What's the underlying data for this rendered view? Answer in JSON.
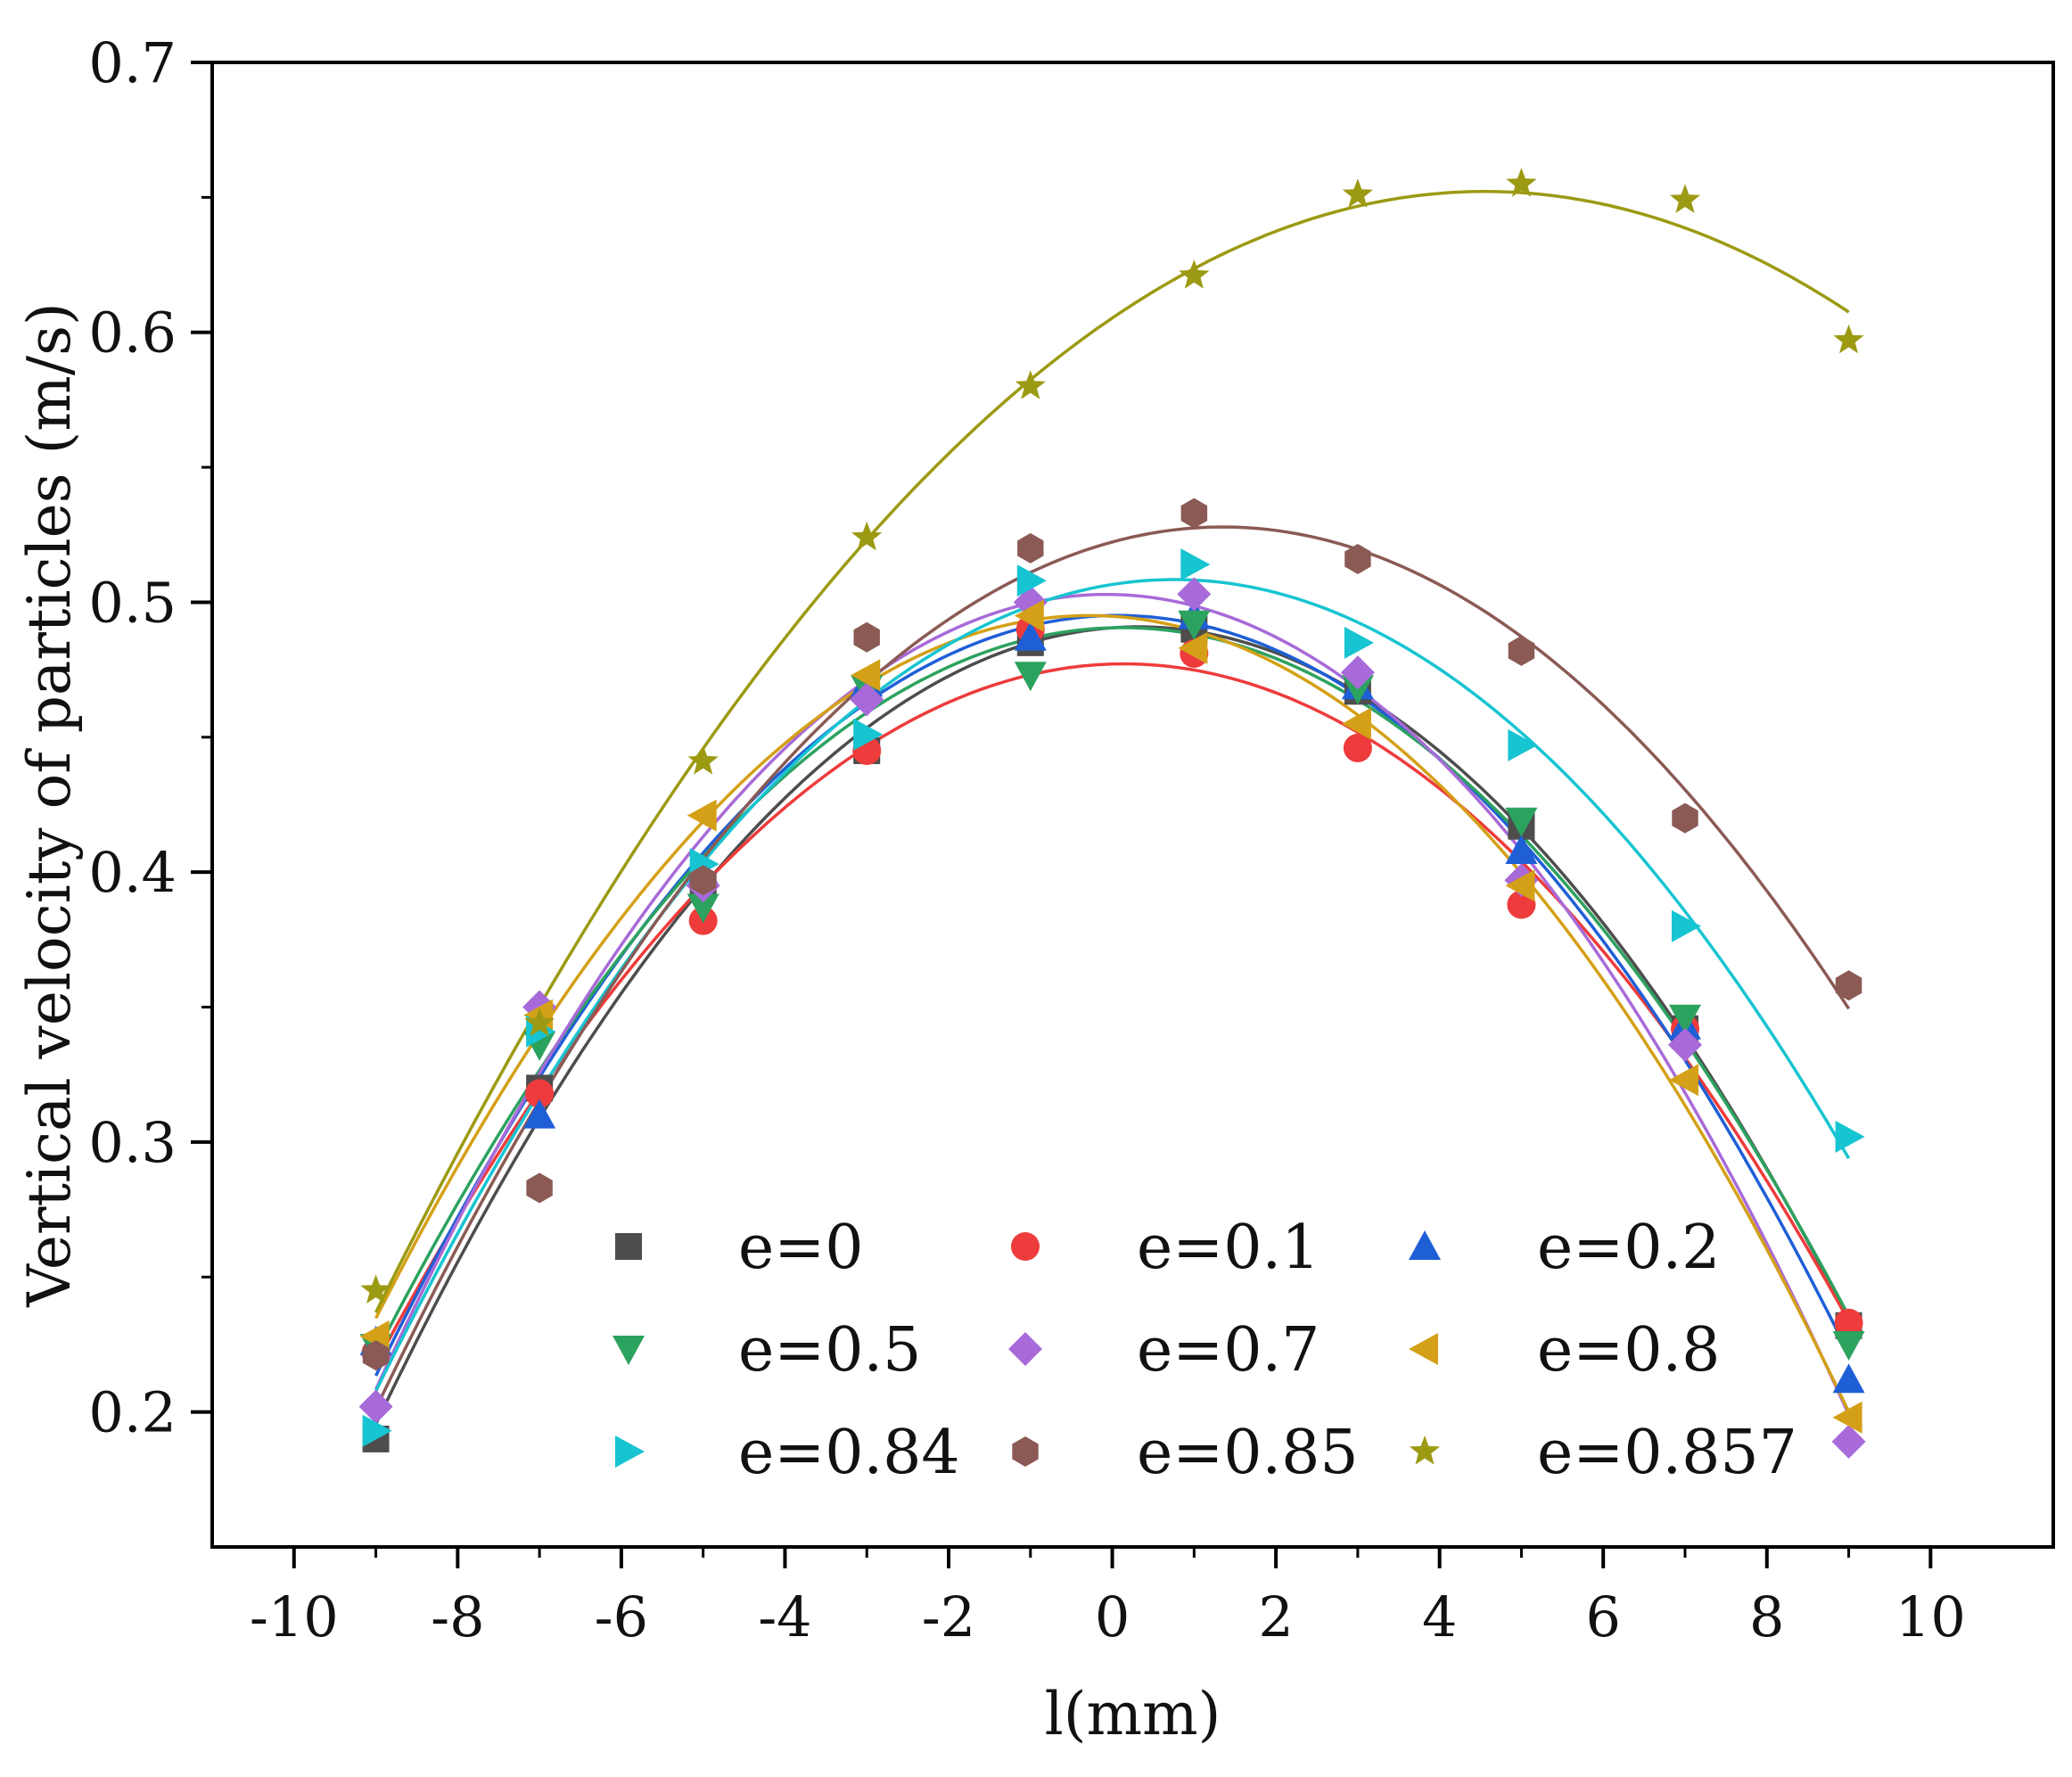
{
  "chart_data": {
    "type": "scatter",
    "title": "",
    "xlabel": "l(mm)",
    "ylabel": "Vertical velocity of particles (m/s)",
    "xlim": [
      -11,
      11.5
    ],
    "ylim": [
      0.15,
      0.7
    ],
    "xticks": [
      -10,
      -8,
      -6,
      -4,
      -2,
      0,
      2,
      4,
      6,
      8,
      10
    ],
    "xtick_labels": [
      "-10",
      "-8",
      "-6",
      "-4",
      "-2",
      "0",
      "2",
      "4",
      "6",
      "8",
      "10"
    ],
    "yticks": [
      0.2,
      0.3,
      0.4,
      0.5,
      0.6,
      0.7
    ],
    "ytick_labels": [
      "0.2",
      "0.3",
      "0.4",
      "0.5",
      "0.6",
      "0.7"
    ],
    "fit": "quadratic",
    "legend_position": "bottom-center, 3 columns",
    "x": [
      -9,
      -7,
      -5,
      -3,
      -1,
      1,
      3,
      5,
      7,
      9
    ],
    "series": [
      {
        "name": "e=0",
        "marker": "square",
        "color": "#4d4d4d",
        "values": [
          0.19,
          0.32,
          0.395,
          0.445,
          0.485,
          0.49,
          0.467,
          0.417,
          0.342,
          0.232
        ]
      },
      {
        "name": "e=0.1",
        "marker": "circle",
        "color": "#ee3b3b",
        "values": [
          0.222,
          0.318,
          0.382,
          0.445,
          0.49,
          0.481,
          0.446,
          0.388,
          0.342,
          0.233
        ]
      },
      {
        "name": "e=0.2",
        "marker": "triangle-up",
        "color": "#1f5fd6",
        "values": [
          0.226,
          0.31,
          0.4,
          0.47,
          0.487,
          0.495,
          0.469,
          0.408,
          0.343,
          0.212
        ]
      },
      {
        "name": "e=0.5",
        "marker": "triangle-down",
        "color": "#2ca25f",
        "values": [
          0.224,
          0.336,
          0.387,
          0.468,
          0.473,
          0.492,
          0.468,
          0.419,
          0.346,
          0.225
        ]
      },
      {
        "name": "e=0.7",
        "marker": "diamond",
        "color": "#a86ad8",
        "values": [
          0.202,
          0.35,
          0.395,
          0.464,
          0.5,
          0.503,
          0.474,
          0.397,
          0.336,
          0.189
        ]
      },
      {
        "name": "e=0.8",
        "marker": "triangle-left",
        "color": "#d4a017",
        "values": [
          0.228,
          0.347,
          0.421,
          0.473,
          0.495,
          0.483,
          0.455,
          0.395,
          0.323,
          0.198
        ]
      },
      {
        "name": "e=0.84",
        "marker": "triangle-right",
        "color": "#17c4d1",
        "values": [
          0.193,
          0.341,
          0.403,
          0.451,
          0.508,
          0.514,
          0.485,
          0.447,
          0.38,
          0.302
        ]
      },
      {
        "name": "e=0.85",
        "marker": "hexagon",
        "color": "#8b5a55",
        "values": [
          0.221,
          0.283,
          0.397,
          0.487,
          0.52,
          0.533,
          0.516,
          0.482,
          0.42,
          0.358
        ]
      },
      {
        "name": "e=0.857",
        "marker": "star",
        "color": "#9c9a12",
        "values": [
          0.245,
          0.344,
          0.441,
          0.524,
          0.58,
          0.621,
          0.651,
          0.655,
          0.649,
          0.597
        ]
      }
    ]
  }
}
